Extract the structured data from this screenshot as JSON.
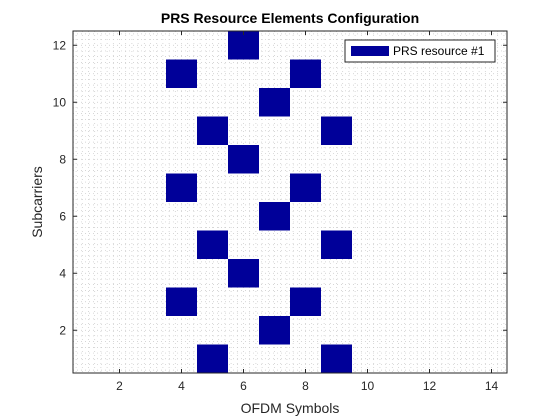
{
  "chart_data": {
    "type": "heatmap",
    "title": "PRS Resource Elements Configuration",
    "xlabel": "OFDM Symbols",
    "ylabel": "Subcarriers",
    "xlim": [
      0.5,
      14.5
    ],
    "ylim": [
      0.5,
      12.5
    ],
    "xticks": [
      2,
      4,
      6,
      8,
      10,
      12,
      14
    ],
    "yticks": [
      2,
      4,
      6,
      8,
      10,
      12
    ],
    "grid": "minor dotted",
    "legend_position": "top-right",
    "series": [
      {
        "name": "PRS resource #1",
        "color": "#000099",
        "cells": [
          [
            5,
            1
          ],
          [
            9,
            1
          ],
          [
            7,
            2
          ],
          [
            4,
            3
          ],
          [
            8,
            3
          ],
          [
            6,
            4
          ],
          [
            5,
            5
          ],
          [
            9,
            5
          ],
          [
            7,
            6
          ],
          [
            4,
            7
          ],
          [
            8,
            7
          ],
          [
            6,
            8
          ],
          [
            5,
            9
          ],
          [
            9,
            9
          ],
          [
            7,
            10
          ],
          [
            4,
            11
          ],
          [
            8,
            11
          ],
          [
            6,
            12
          ]
        ]
      }
    ]
  }
}
